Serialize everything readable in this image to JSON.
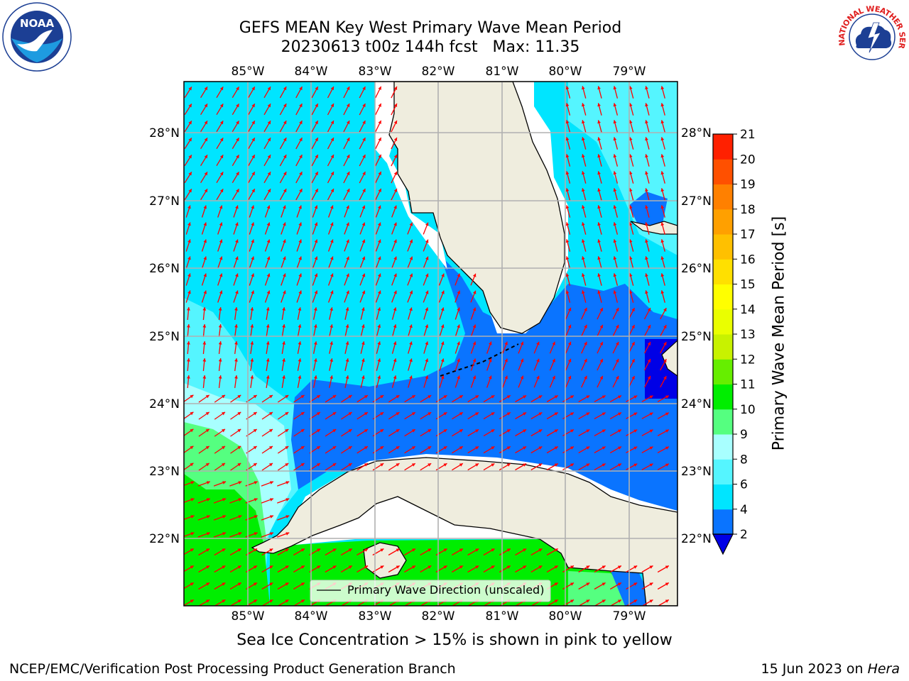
{
  "title": {
    "line1": "GEFS MEAN Key West Primary Wave Mean Period",
    "line2": "20230613 t00z 144h fcst   Max: 11.35"
  },
  "logos": {
    "left": {
      "icon": "noaa-logo",
      "text": "NOAA"
    },
    "right": {
      "icon": "national-weather-service-logo",
      "text": "NATIONAL WEATHER SERVICE"
    }
  },
  "map": {
    "lon_labels": [
      "85°W",
      "84°W",
      "83°W",
      "82°W",
      "81°W",
      "80°W",
      "79°W"
    ],
    "lat_labels": [
      "28°N",
      "27°N",
      "26°N",
      "25°N",
      "24°N",
      "23°N",
      "22°N"
    ],
    "legend_label": "Primary Wave Direction (unscaled)",
    "land_color": "#efedde",
    "arrow_color": "#ff0000"
  },
  "colorbar": {
    "title": "Primary Wave Mean Period [s]",
    "ticks": [
      "2",
      "4",
      "6",
      "8",
      "9",
      "10",
      "11",
      "12",
      "13",
      "14",
      "15",
      "16",
      "17",
      "18",
      "19",
      "20",
      "21"
    ],
    "colors": [
      "#0a74ff",
      "#00e5ff",
      "#55f5ff",
      "#a8ffff",
      "#55ff80",
      "#00ee00",
      "#66ee00",
      "#c8f200",
      "#eaff00",
      "#ffff00",
      "#ffe000",
      "#ffc000",
      "#ffa000",
      "#ff8000",
      "#ff5000",
      "#ff2000",
      "#ff0000"
    ],
    "under_color": "#0000e6"
  },
  "footer": {
    "caption": "Sea Ice Concentration > 15% is shown in pink to yellow",
    "org": "NCEP/EMC/Verification Post Processing Product Generation Branch",
    "date": "15 Jun 2023 on",
    "host": "Hera"
  }
}
